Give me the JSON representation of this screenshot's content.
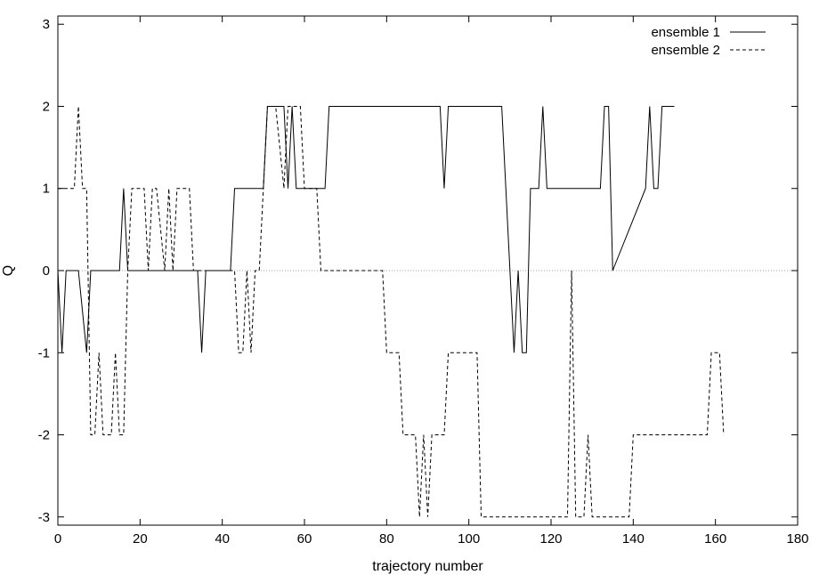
{
  "chart_data": {
    "type": "line",
    "title": "",
    "xlabel": "trajectory number",
    "ylabel": "Q",
    "xlim": [
      0,
      180
    ],
    "ylim": [
      -3.1,
      3.1
    ],
    "xticks": [
      0,
      20,
      40,
      60,
      80,
      100,
      120,
      140,
      160,
      180
    ],
    "yticks": [
      -3,
      -2,
      -1,
      0,
      1,
      2,
      3
    ],
    "xtick_labels": [
      "0",
      "20",
      "40",
      "60",
      "80",
      "100",
      "120",
      "140",
      "160",
      "180"
    ],
    "ytick_labels": [
      "-3",
      "-2",
      "-1",
      "0",
      "1",
      "2",
      "3"
    ],
    "grid": false,
    "zero_line": true,
    "legend_position": "top-right",
    "series": [
      {
        "name": "ensemble 1",
        "style": "solid",
        "color": "#000000",
        "x": [
          0,
          1,
          2,
          5,
          7,
          8,
          9,
          15,
          16,
          17,
          34,
          35,
          36,
          42,
          43,
          50,
          51,
          55,
          56,
          57,
          58,
          62,
          63,
          65,
          66,
          93,
          94,
          95,
          108,
          109,
          111,
          112,
          113,
          114,
          115,
          117,
          118,
          119,
          128,
          132,
          133,
          134,
          135,
          143,
          144,
          145,
          146,
          147,
          150
        ],
        "y": [
          0,
          -1,
          0,
          0,
          -1,
          0,
          0,
          0,
          1,
          0,
          0,
          -1,
          0,
          0,
          1,
          1,
          2,
          2,
          1,
          2,
          1,
          1,
          1,
          1,
          2,
          2,
          1,
          2,
          2,
          1,
          -1,
          0,
          -1,
          -1,
          1,
          1,
          2,
          1,
          1,
          1,
          2,
          2,
          0,
          1,
          2,
          1,
          1,
          2,
          2
        ]
      },
      {
        "name": "ensemble 2",
        "style": "dashed",
        "color": "#000000",
        "x": [
          0,
          1,
          4,
          5,
          6,
          7,
          8,
          9,
          10,
          11,
          13,
          14,
          15,
          16,
          17,
          18,
          21,
          22,
          23,
          24,
          26,
          27,
          28,
          29,
          32,
          33,
          34,
          43,
          44,
          45,
          46,
          47,
          48,
          49,
          50,
          51,
          52,
          53,
          55,
          56,
          59,
          60,
          61,
          62,
          63,
          64,
          79,
          80,
          83,
          84,
          87,
          88,
          89,
          90,
          91,
          94,
          95,
          102,
          103,
          124,
          125,
          126,
          127,
          128,
          129,
          130,
          131,
          139,
          140,
          158,
          159,
          161,
          162
        ],
        "y": [
          1,
          1,
          1,
          2,
          1,
          1,
          -2,
          -2,
          -1,
          -2,
          -2,
          -1,
          -2,
          -2,
          0,
          1,
          1,
          0,
          1,
          1,
          0,
          1,
          0,
          1,
          1,
          0,
          0,
          0,
          -1,
          -1,
          0,
          -1,
          0,
          0,
          1,
          2,
          2,
          2,
          1,
          2,
          2,
          1,
          1,
          1,
          1,
          0,
          0,
          -1,
          -1,
          -2,
          -2,
          -3,
          -2,
          -3,
          -2,
          -2,
          -1,
          -1,
          -3,
          -3,
          0,
          -3,
          -3,
          -3,
          -2,
          -3,
          -3,
          -3,
          -2,
          -2,
          -1,
          -1,
          -2
        ]
      }
    ]
  }
}
